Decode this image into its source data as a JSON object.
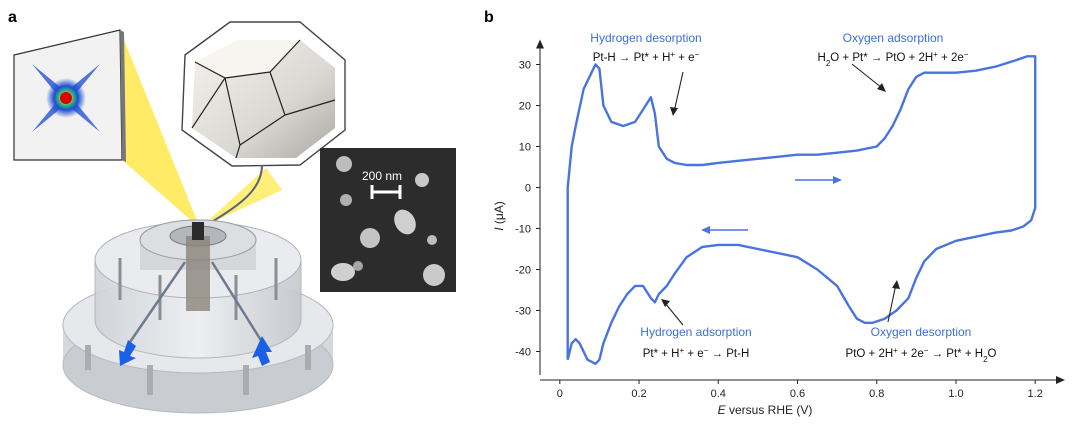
{
  "panel_labels": {
    "a": "a",
    "b": "b"
  },
  "sem": {
    "scale_bar": "200 nm"
  },
  "chart_data": {
    "type": "line",
    "xlabel_italic": "E",
    "xlabel_rest": " versus RHE (V)",
    "ylabel_italic": "I",
    "ylabel_rest": " (μA)",
    "xlim": [
      -0.05,
      1.25
    ],
    "ylim": [
      -45,
      35
    ],
    "xticks": [
      0,
      0.2,
      0.4,
      0.6,
      0.8,
      1.0,
      1.2
    ],
    "xtick_labels": [
      "0",
      "0.2",
      "0.4",
      "0.6",
      "0.8",
      "1.0",
      "1.2"
    ],
    "yticks": [
      -40,
      -30,
      -20,
      -10,
      0,
      10,
      20,
      30
    ],
    "ytick_labels": [
      "-40",
      "-30",
      "-20",
      "-10",
      "0",
      "10",
      "20",
      "30"
    ],
    "color": "#4a74dd",
    "series": [
      {
        "x": [
          0.02,
          0.02,
          0.03,
          0.04,
          0.06,
          0.08,
          0.09,
          0.1,
          0.11,
          0.13,
          0.16,
          0.19,
          0.21,
          0.23,
          0.24,
          0.25,
          0.27,
          0.29,
          0.32,
          0.36,
          0.4,
          0.45,
          0.5,
          0.55,
          0.6,
          0.65,
          0.7,
          0.75,
          0.8,
          0.82,
          0.84,
          0.86,
          0.88,
          0.9,
          0.92,
          0.95,
          1.0,
          1.05,
          1.1,
          1.15,
          1.18,
          1.2,
          1.2,
          1.19,
          1.17,
          1.14,
          1.1,
          1.05,
          1.0,
          0.95,
          0.92,
          0.9,
          0.88,
          0.85,
          0.82,
          0.79,
          0.77,
          0.75,
          0.73,
          0.7,
          0.65,
          0.6,
          0.55,
          0.5,
          0.45,
          0.4,
          0.36,
          0.32,
          0.29,
          0.27,
          0.25,
          0.24,
          0.23,
          0.21,
          0.19,
          0.17,
          0.15,
          0.13,
          0.11,
          0.1,
          0.09,
          0.07,
          0.05,
          0.04,
          0.03,
          0.02
        ],
        "y": [
          -42,
          0,
          10,
          15,
          24,
          28,
          30,
          29,
          20,
          16,
          15,
          16,
          19,
          22,
          18,
          10,
          7,
          6,
          5.5,
          5.5,
          6,
          6.5,
          7,
          7.5,
          8,
          8,
          8.5,
          9,
          10,
          12,
          15,
          19,
          24,
          27,
          28,
          28,
          28,
          28.5,
          29.5,
          31,
          32,
          32,
          -5,
          -8,
          -9.5,
          -10.5,
          -11,
          -12,
          -13,
          -15,
          -18,
          -22,
          -27,
          -30,
          -32,
          -33,
          -33,
          -32,
          -29,
          -24,
          -20,
          -17,
          -16,
          -15,
          -14,
          -14,
          -14.5,
          -17,
          -21,
          -24,
          -26,
          -28,
          -27,
          -24,
          -24,
          -26,
          -29,
          -33,
          -38,
          -42,
          -43,
          -42,
          -38,
          -37,
          -38,
          -42
        ]
      }
    ],
    "annotations": [
      {
        "title": "Hydrogen desorption",
        "eq_parts": [
          [
            "Pt-H → Pt* + H",
            ""
          ],
          [
            "+",
            "sup"
          ],
          [
            " + e",
            ""
          ],
          [
            "−",
            "sup"
          ]
        ]
      },
      {
        "title": "Oxygen adsorption",
        "eq_parts": [
          [
            "H",
            ""
          ],
          [
            "2",
            "sub"
          ],
          [
            "O + Pt* → PtO + 2H",
            ""
          ],
          [
            "+",
            "sup"
          ],
          [
            " + 2e",
            ""
          ],
          [
            "−",
            "sup"
          ]
        ]
      },
      {
        "title": "Hydrogen adsorption",
        "eq_parts": [
          [
            "Pt* + H",
            ""
          ],
          [
            "+",
            "sup"
          ],
          [
            " + e",
            ""
          ],
          [
            "−",
            "sup"
          ],
          [
            " → Pt-H",
            ""
          ]
        ]
      },
      {
        "title": "Oxygen desorption",
        "eq_parts": [
          [
            "PtO + 2H",
            ""
          ],
          [
            "+",
            "sup"
          ],
          [
            " + 2e",
            ""
          ],
          [
            "−",
            "sup"
          ],
          [
            " → Pt* + H",
            ""
          ],
          [
            "2",
            "sub"
          ],
          [
            "O",
            ""
          ]
        ]
      }
    ]
  }
}
